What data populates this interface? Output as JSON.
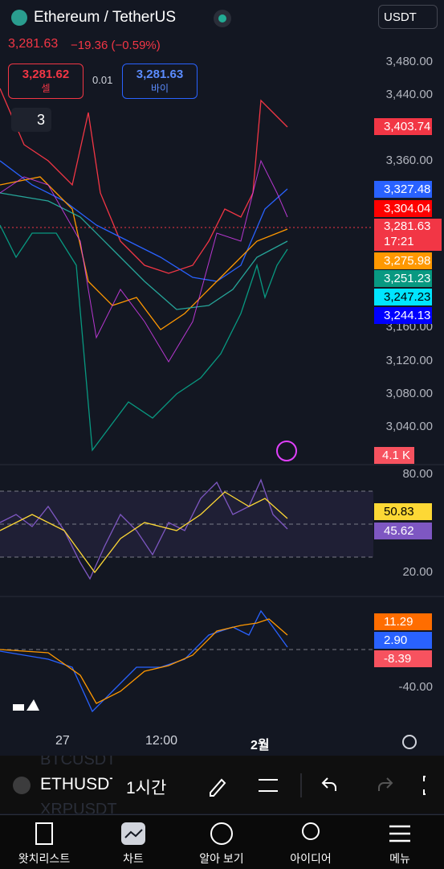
{
  "header": {
    "symbol": "Ethereum / TetherUS",
    "quote": "USDT",
    "price": "3,281.63",
    "change": "−19.36 (−0.59%)"
  },
  "order": {
    "sell_price": "3,281.62",
    "sell_label": "셀",
    "spread": "0.01",
    "buy_price": "3,281.63",
    "buy_label": "바이"
  },
  "indicator_count": "3",
  "price_axis": {
    "ticks": [
      "3,480.00",
      "3,440.00",
      "3,360.00",
      "3,160.00",
      "3,120.00",
      "3,080.00",
      "3,040.00"
    ],
    "labels": [
      "3,403.74",
      "3,327.48",
      "3,304.04",
      "3,281.63",
      "17:21",
      "3,275.98",
      "3,251.23",
      "3,247.23",
      "3,244.13"
    ],
    "volume": "4.1 K"
  },
  "rsi": {
    "ticks": [
      "80.00",
      "20.00"
    ],
    "labels": [
      "50.83",
      "45.62"
    ]
  },
  "macd": {
    "ticks": [
      "-40.00"
    ],
    "labels": [
      "11.29",
      "2.90",
      "-8.39"
    ]
  },
  "time_axis": [
    "27",
    "12:00",
    "2월"
  ],
  "toolbar": {
    "symbol": "ETHUSDT",
    "interval": "1시간",
    "ghost": [
      "BTCUSDT",
      "XRPUSDT"
    ]
  },
  "nav": [
    "왓치리스트",
    "차트",
    "알아 보기",
    "아이디어",
    "메뉴"
  ]
}
